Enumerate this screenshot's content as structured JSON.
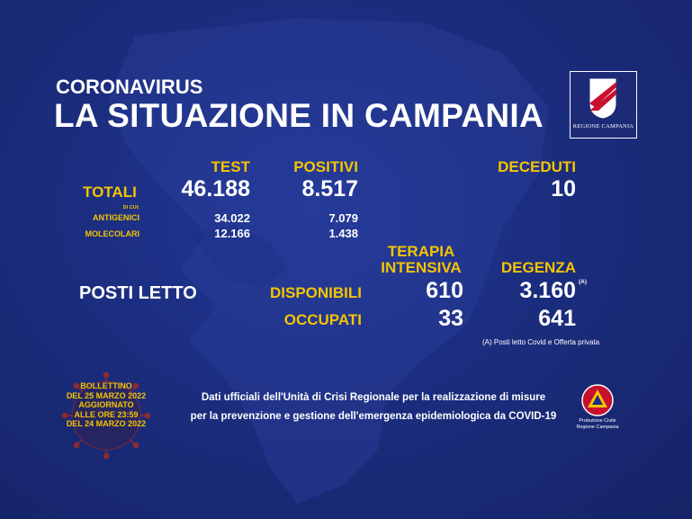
{
  "header": {
    "subtitle": "CORONAVIRUS",
    "title": "LA SITUAZIONE IN CAMPANIA",
    "region_logo_caption": "REGIONE CAMPANIA"
  },
  "columns": {
    "test": "TEST",
    "positivi": "POSITIVI",
    "deceduti": "DECEDUTI"
  },
  "totali": {
    "label": "TOTALI",
    "test": "46.188",
    "positivi": "8.517",
    "deceduti": "10",
    "di_cui": "DI CUI:"
  },
  "antigenici": {
    "label": "ANTIGENICI",
    "test": "34.022",
    "positivi": "7.079"
  },
  "molecolari": {
    "label": "MOLECOLARI",
    "test": "12.166",
    "positivi": "1.438"
  },
  "posti_letto": {
    "label": "POSTI LETTO",
    "col_terapia_line1": "TERAPIA",
    "col_terapia_line2": "INTENSIVA",
    "col_degenza": "DEGENZA",
    "degenza_marker": "(A)",
    "disponibili": {
      "label": "DISPONIBILI",
      "terapia": "610",
      "degenza": "3.160"
    },
    "occupati": {
      "label": "OCCUPATI",
      "terapia": "33",
      "degenza": "641"
    },
    "note": "(A) Posti letto Covid e Offerta privata"
  },
  "bollettino": {
    "line1": "BOLLETTINO",
    "line2": "DEL 25 MARZO 2022",
    "line3": "AGGIORNATO",
    "line4": "ALLE ORE 23:59",
    "line5": "DEL 24 MARZO 2022"
  },
  "footer": {
    "line1": "Dati ufficiali dell'Unità di Crisi Regionale per la realizzazione di misure",
    "line2": "per la prevenzione e gestione dell'emergenza epidemiologica da COVID-19"
  },
  "protezione_civile": {
    "line1": "Protezione Civile",
    "line2": "Regione Campania"
  },
  "colors": {
    "background": "#1b2d7e",
    "accent": "#f5c400",
    "text": "#ffffff"
  }
}
